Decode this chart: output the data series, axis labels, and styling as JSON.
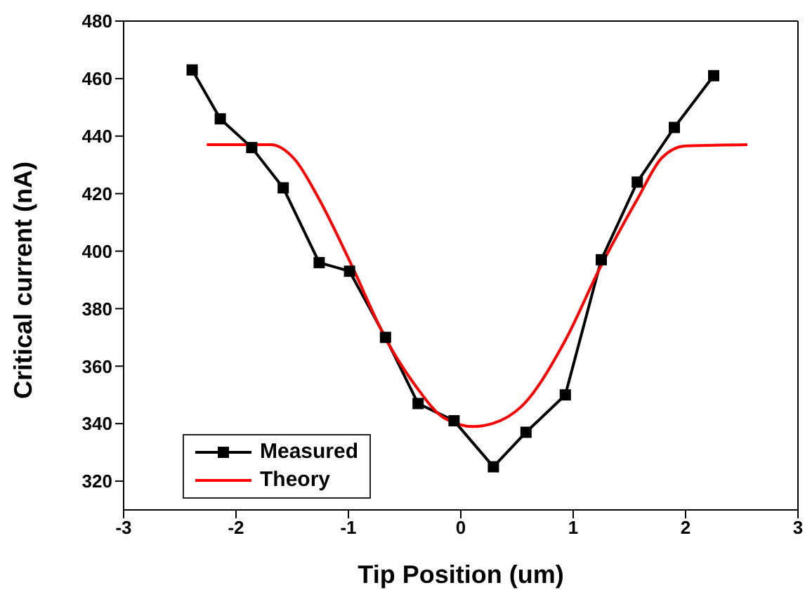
{
  "chart_data": {
    "type": "line",
    "xlabel": "Tip Position (um)",
    "ylabel": "Critical current (nA)",
    "xlim": [
      -3,
      3
    ],
    "xticks": [
      -3,
      -2,
      -1,
      0,
      1,
      2,
      3
    ],
    "ylim": [
      310,
      480
    ],
    "yticks": [
      320,
      340,
      360,
      380,
      400,
      420,
      440,
      460,
      480
    ],
    "grid": false,
    "legend": "bottom left",
    "series": [
      {
        "name": "Measured",
        "color": "#000000",
        "marker": "square",
        "x": [
          -2.39,
          -2.14,
          -1.86,
          -1.58,
          -1.26,
          -0.99,
          -0.67,
          -0.38,
          -0.06,
          0.29,
          0.58,
          0.93,
          1.25,
          1.57,
          1.9,
          2.25
        ],
        "values": [
          463,
          446,
          436,
          422,
          396,
          393,
          370,
          347,
          341,
          325,
          337,
          350,
          397,
          424,
          443,
          461
        ]
      },
      {
        "name": "Theory",
        "color": "#ff0000",
        "marker": "none",
        "x": [
          -2.26,
          -1.69,
          -1.48,
          -1.26,
          -1.0,
          -0.66,
          -0.4,
          -0.15,
          0.11,
          0.28,
          0.54,
          0.93,
          1.23,
          1.57,
          1.79,
          2.0,
          2.55
        ],
        "values": [
          437,
          437,
          432,
          418,
          397.5,
          369,
          353,
          342,
          339,
          340,
          346,
          369,
          393.5,
          418,
          432.5,
          436.6,
          437
        ]
      }
    ]
  }
}
